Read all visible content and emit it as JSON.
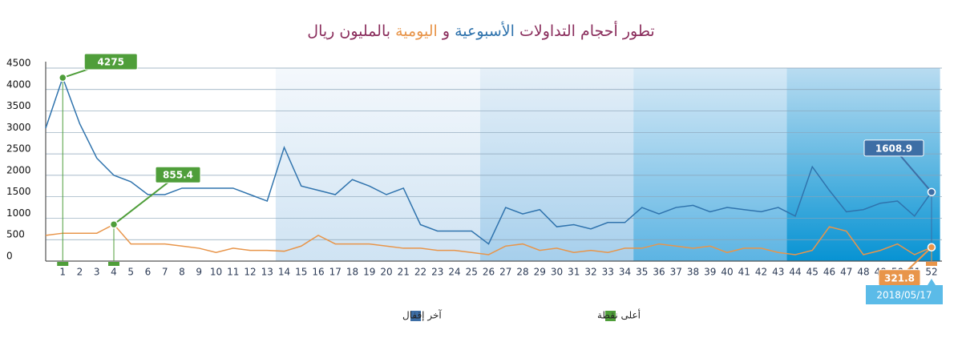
{
  "chart_data": {
    "type": "line",
    "title": [
      {
        "text": "تطور أحجام التداولات",
        "color": "#8a2d5c"
      },
      {
        "text": "الأسبوعية",
        "color": "#2f73ad"
      },
      {
        "text": "و",
        "color": "#8a2d5c"
      },
      {
        "text": "اليومية",
        "color": "#e8954a"
      },
      {
        "text": "بالمليون ريال",
        "color": "#8a2d5c"
      }
    ],
    "categories": [
      null,
      1,
      2,
      3,
      4,
      5,
      6,
      7,
      8,
      9,
      10,
      11,
      12,
      13,
      14,
      15,
      16,
      17,
      18,
      19,
      20,
      21,
      22,
      23,
      24,
      25,
      26,
      27,
      28,
      29,
      30,
      31,
      32,
      33,
      34,
      35,
      36,
      37,
      38,
      39,
      40,
      41,
      42,
      43,
      44,
      45,
      46,
      47,
      48,
      49,
      50,
      51,
      52
    ],
    "series": [
      {
        "name": "الأسبوعية",
        "color": "#2f73ad",
        "values": [
          3100,
          4275,
          3200,
          2400,
          2000,
          1850,
          1550,
          1550,
          1700,
          1700,
          1700,
          1700,
          1550,
          1400,
          2650,
          1750,
          1650,
          1550,
          1900,
          1750,
          1550,
          1700,
          850,
          700,
          700,
          700,
          400,
          1250,
          1100,
          1200,
          800,
          850,
          750,
          900,
          900,
          1250,
          1100,
          1250,
          1300,
          1150,
          1250,
          1200,
          1150,
          1250,
          1050,
          2200,
          1650,
          1150,
          1200,
          1350,
          1400,
          1050,
          1608.9
        ]
      },
      {
        "name": "اليومية",
        "color": "#e8954a",
        "values": [
          600,
          650,
          650,
          650,
          855.4,
          400,
          400,
          400,
          350,
          300,
          200,
          300,
          250,
          250,
          230,
          350,
          600,
          400,
          400,
          400,
          350,
          300,
          300,
          250,
          250,
          200,
          150,
          350,
          400,
          250,
          300,
          200,
          250,
          200,
          300,
          300,
          400,
          350,
          300,
          350,
          200,
          300,
          300,
          200,
          150,
          250,
          800,
          700,
          150,
          250,
          400,
          150,
          321.8
        ]
      }
    ],
    "ylim": [
      0,
      4500
    ],
    "yticks": [
      0,
      500,
      1000,
      1500,
      2000,
      2500,
      3000,
      3500,
      4000,
      4500
    ],
    "grid": true,
    "annotations": [
      {
        "series": 0,
        "index": 1,
        "label": "4275",
        "color": "#4f9e3a"
      },
      {
        "series": 1,
        "index": 4,
        "label": "855.4",
        "color": "#4f9e3a"
      },
      {
        "series": 0,
        "index": 52,
        "label": "1608.9",
        "color": "#3d6ea5"
      },
      {
        "series": 1,
        "index": 52,
        "label": "321.8",
        "color": "#e8954a"
      }
    ],
    "last_date": "2018/05/17",
    "legend": [
      {
        "label": "آخر إقفال",
        "color": "#3d6ea5"
      },
      {
        "label": "أعلى نقطة",
        "color": "#4f9e3a"
      }
    ]
  }
}
